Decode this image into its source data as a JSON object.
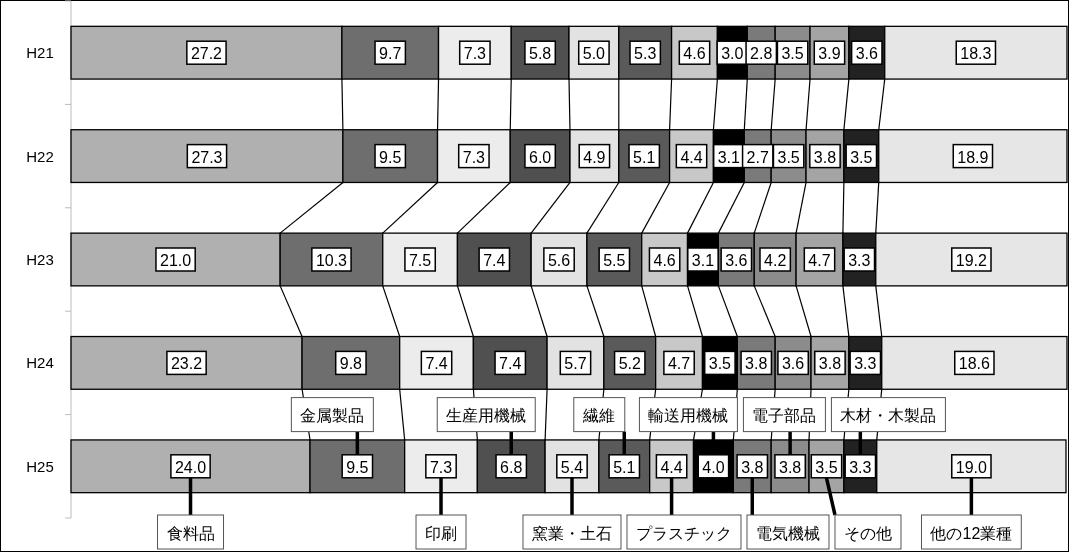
{
  "chart_data": {
    "type": "bar",
    "orientation": "horizontal",
    "stacked": true,
    "categories": [
      "H21",
      "H22",
      "H23",
      "H24",
      "H25"
    ],
    "xlim": [
      0,
      100
    ],
    "tick_labels": "y",
    "legend": "bottom",
    "series": [
      {
        "name": "食料品",
        "color": "#b0b0b0",
        "values": [
          27.2,
          27.3,
          21.0,
          23.2,
          24.0
        ],
        "value_labels": [
          "27.2",
          "27.3",
          "21.0",
          "23.2",
          "24.0"
        ]
      },
      {
        "name": "金属製品",
        "color": "#6e6e6e",
        "values": [
          9.7,
          9.5,
          10.3,
          9.8,
          9.5
        ],
        "value_labels": [
          "9.7",
          "9.5",
          "10.3",
          "9.8",
          "9.5"
        ]
      },
      {
        "name": "印刷",
        "color": "#ececec",
        "values": [
          7.3,
          7.3,
          7.5,
          7.4,
          7.3
        ],
        "value_labels": [
          "7.3",
          "7.3",
          "7.5",
          "7.4",
          "7.3"
        ]
      },
      {
        "name": "生産用機械",
        "color": "#505050",
        "values": [
          5.8,
          6.0,
          7.4,
          7.4,
          6.8
        ],
        "value_labels": [
          "5.8",
          "6.0",
          "7.4",
          "7.4",
          "6.8"
        ]
      },
      {
        "name": "窯業・土石",
        "color": "#e2e2e2",
        "values": [
          5.0,
          4.9,
          5.6,
          5.7,
          5.4
        ],
        "value_labels": [
          "5.0",
          "4.9",
          "5.6",
          "5.7",
          "5.4"
        ]
      },
      {
        "name": "繊維",
        "color": "#5a5a5a",
        "values": [
          5.3,
          5.1,
          5.5,
          5.2,
          5.1
        ],
        "value_labels": [
          "5.3",
          "5.1",
          "5.5",
          "5.2",
          "5.1"
        ]
      },
      {
        "name": "プラスチック",
        "color": "#c8c8c8",
        "values": [
          4.6,
          4.4,
          4.6,
          4.7,
          4.4
        ],
        "value_labels": [
          "4.6",
          "4.4",
          "4.6",
          "4.7",
          "4.4"
        ]
      },
      {
        "name": "輸送用機械",
        "color": "#000000",
        "values": [
          3.0,
          3.1,
          3.1,
          3.5,
          4.0
        ],
        "value_labels": [
          "3.0",
          "3.1",
          "3.1",
          "3.5",
          "4.0"
        ]
      },
      {
        "name": "電気機械",
        "color": "#7a7a7a",
        "values": [
          2.8,
          2.7,
          3.6,
          3.8,
          3.8
        ],
        "value_labels": [
          "2.8",
          "2.7",
          "3.6",
          "3.8",
          "3.8"
        ]
      },
      {
        "name": "電子部品",
        "color": "#8c8c8c",
        "values": [
          3.5,
          3.5,
          4.2,
          3.6,
          3.8
        ],
        "value_labels": [
          "3.5",
          "3.5",
          "4.2",
          "3.6",
          "3.8"
        ]
      },
      {
        "name": "その他",
        "color": "#a4a4a4",
        "values": [
          3.9,
          3.8,
          4.7,
          3.8,
          3.5
        ],
        "value_labels": [
          "3.9",
          "3.8",
          "4.7",
          "3.8",
          "3.5"
        ]
      },
      {
        "name": "木材・木製品",
        "color": "#222222",
        "values": [
          3.6,
          3.5,
          3.3,
          3.3,
          3.3
        ],
        "value_labels": [
          "3.6",
          "3.5",
          "3.3",
          "3.3",
          "3.3"
        ]
      },
      {
        "name": "他の12業種",
        "color": "#e6e6e6",
        "values": [
          18.3,
          18.9,
          19.2,
          18.6,
          19.0
        ],
        "value_labels": [
          "18.3",
          "18.9",
          "19.2",
          "18.6",
          "19.0"
        ]
      }
    ]
  }
}
